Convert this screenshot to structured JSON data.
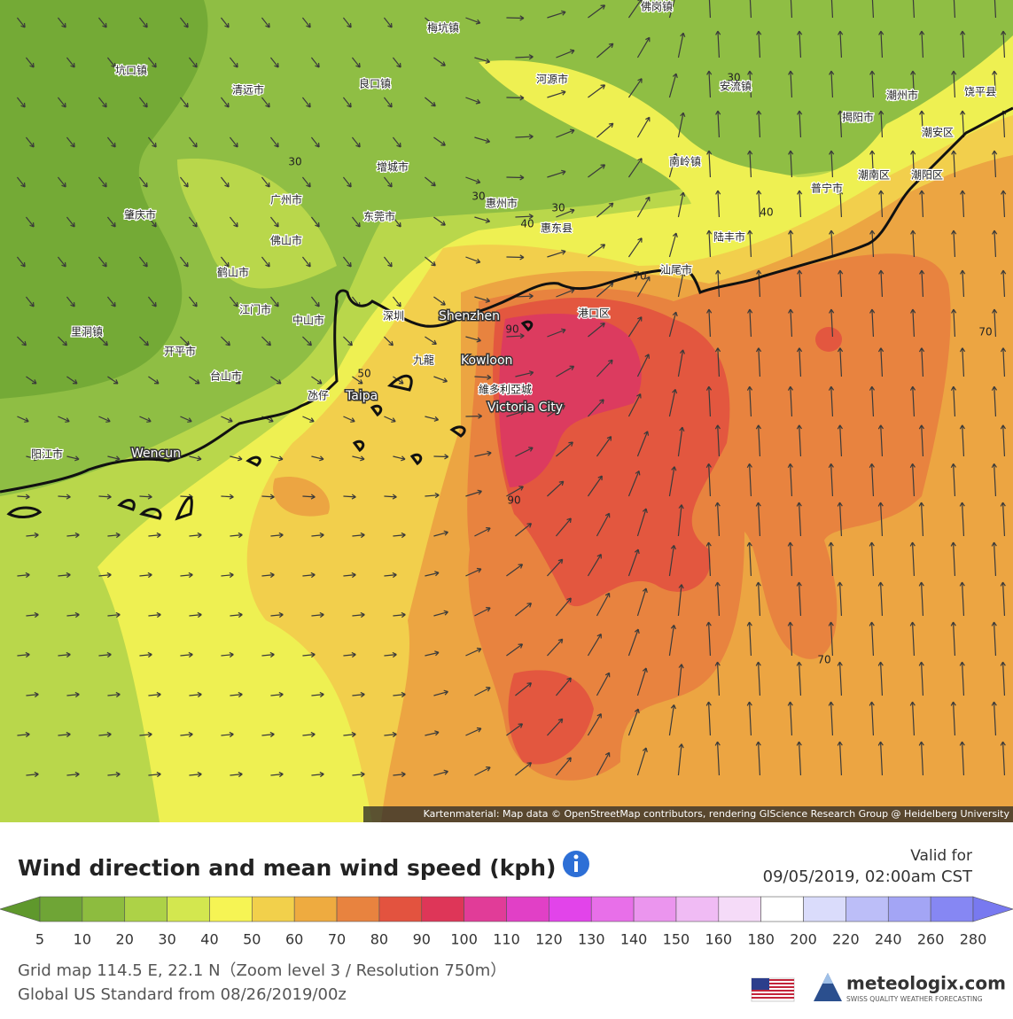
{
  "map": {
    "places": [
      "佛岗镇",
      "梅坑镇",
      "坑口镇",
      "清远市",
      "良口镇",
      "河源市",
      "安流镇",
      "潮州市",
      "饶平县",
      "揭阳市",
      "潮安区",
      "增城市",
      "南岭镇",
      "广州市",
      "肇庆市",
      "东莞市",
      "惠州市",
      "惠东县",
      "普宁市",
      "潮南区",
      "潮阳区",
      "佛山市",
      "陆丰市",
      "鹤山市",
      "汕尾市",
      "江门市",
      "中山市",
      "深圳",
      "Shenzhen",
      "港口区",
      "里洞镇",
      "开平市",
      "九龍",
      "Kowloon",
      "台山市",
      "氹仔",
      "Taipa",
      "維多利亞城",
      "Victoria City",
      "阳江市",
      "Wencun"
    ],
    "contour_labels": [
      30,
      30,
      30,
      30,
      40,
      40,
      50,
      70,
      70,
      70,
      90,
      90
    ],
    "attribution": "Kartenmaterial: Map data © OpenStreetMap contributors, rendering GIScience Research Group @ Heidelberg University"
  },
  "panel": {
    "title": "Wind direction and mean wind speed (kph)",
    "valid_label": "Valid for",
    "valid_time": "09/05/2019, 02:00am CST",
    "scale_labels": [
      5,
      10,
      20,
      30,
      40,
      50,
      60,
      70,
      80,
      90,
      100,
      110,
      120,
      130,
      140,
      150,
      160,
      180,
      200,
      220,
      240,
      260,
      280
    ],
    "scale_colors": [
      "#5f982c",
      "#6fa536",
      "#8dbc3f",
      "#add247",
      "#d3e74f",
      "#f6f454",
      "#f2d04b",
      "#eeab40",
      "#e8833f",
      "#e3533f",
      "#de3658",
      "#e13c98",
      "#e140c6",
      "#e244ea",
      "#e86fe9",
      "#eb95ee",
      "#f0bbf4",
      "#f5dbf8",
      "#ffffff",
      "#dadcfb",
      "#bcbef8",
      "#a3a5f5",
      "#8687f3",
      "#7879f0"
    ],
    "grid_info": "Grid map 114.5 E, 22.1 N（Zoom level 3 / Resolution 750m）",
    "model_info": "Global US Standard from 08/26/2019/00z",
    "brand": "meteologix.com",
    "tagline": "SWISS QUALITY WEATHER FORECASTING"
  }
}
